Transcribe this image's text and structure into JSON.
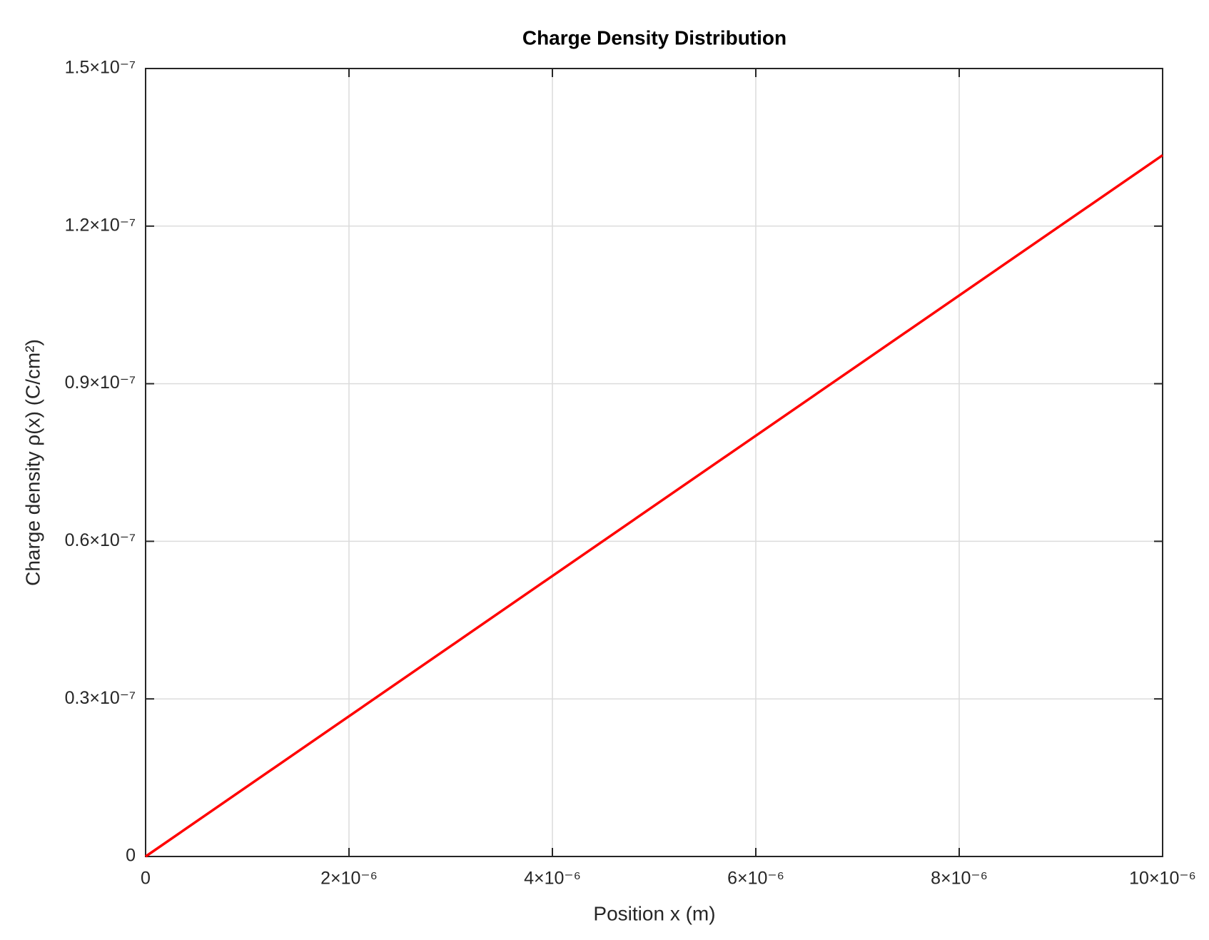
{
  "chart_data": {
    "type": "line",
    "title": "Charge Density Distribution",
    "x_label": "Position x (m)",
    "y_label": "Charge density ρ(x) (C/cm²)",
    "x": [
      0,
      1e-05
    ],
    "series": [
      {
        "name": "ρ(x)",
        "color": "#ff0000",
        "values": [
          0,
          1.335e-07
        ]
      }
    ],
    "xlim": [
      0,
      1e-05
    ],
    "xticks": [
      0,
      {
        "value": 2e-06,
        "label": "2×10⁻⁶"
      },
      {
        "value": 4e-06,
        "label": "4×10⁻⁶"
      },
      {
        "value": 6e-06,
        "label": "6×10⁻⁶"
      },
      {
        "value": 8e-06,
        "label": "8×10⁻⁶"
      },
      {
        "value": 1e-05,
        "label": "10×10⁻⁶"
      }
    ],
    "ylim": [
      0,
      1.5e-07
    ],
    "yticks": [
      0,
      {
        "value": 3e-08,
        "label": "0.3×10⁻⁷"
      },
      {
        "value": 6e-08,
        "label": "0.6×10⁻⁷"
      },
      {
        "value": 9e-08,
        "label": "0.9×10⁻⁷"
      },
      {
        "value": 1.2e-07,
        "label": "1.2×10⁻⁷"
      },
      {
        "value": 1.5e-07,
        "label": "1.5×10⁻⁷"
      }
    ],
    "grid": true
  }
}
